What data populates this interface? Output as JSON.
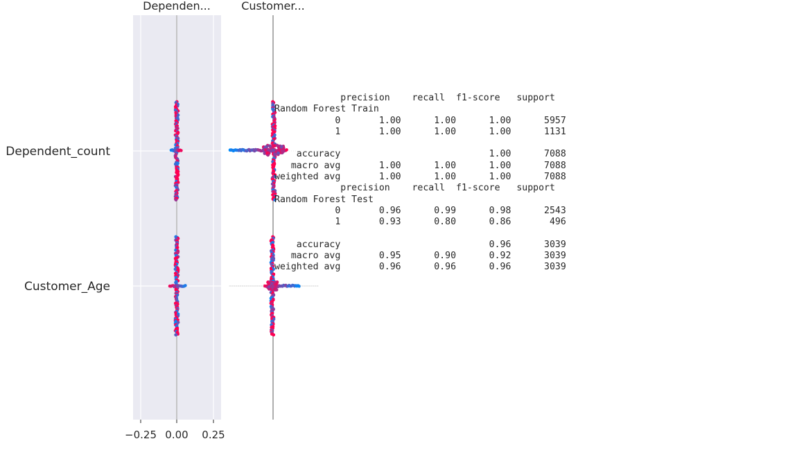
{
  "chart_data": [
    {
      "type": "scatter",
      "title": "Dependen...",
      "rows": [
        "Dependent_count",
        "Customer_Age"
      ],
      "xticks": [
        "−0.25",
        "0.00",
        "0.25"
      ],
      "xlim": [
        -0.3,
        0.3
      ],
      "grid": true,
      "background": "#eaeaf2",
      "colors": [
        "#008bfb",
        "#ff0052"
      ]
    },
    {
      "type": "scatter",
      "title": "Customer...",
      "rows": [
        "Dependent_count",
        "Customer_Age"
      ],
      "grid": false,
      "colors": [
        "#008bfb",
        "#ff0052"
      ]
    }
  ],
  "report": {
    "text": "            precision    recall  f1-score   support\nRandom Forest Train\n           0       1.00      1.00      1.00      5957\n           1       1.00      1.00      1.00      1131\n\n    accuracy                           1.00      7088\n   macro avg       1.00      1.00      1.00      7088\nweighted avg       1.00      1.00      1.00      7088\n            precision    recall  f1-score   support\nRandom Forest Test\n           0       0.96      0.99      0.98      2543\n           1       0.93      0.80      0.86       496\n\n    accuracy                           0.96      3039\n   macro avg       0.95      0.90      0.92      3039\nweighted avg       0.96      0.96      0.96      3039"
  }
}
